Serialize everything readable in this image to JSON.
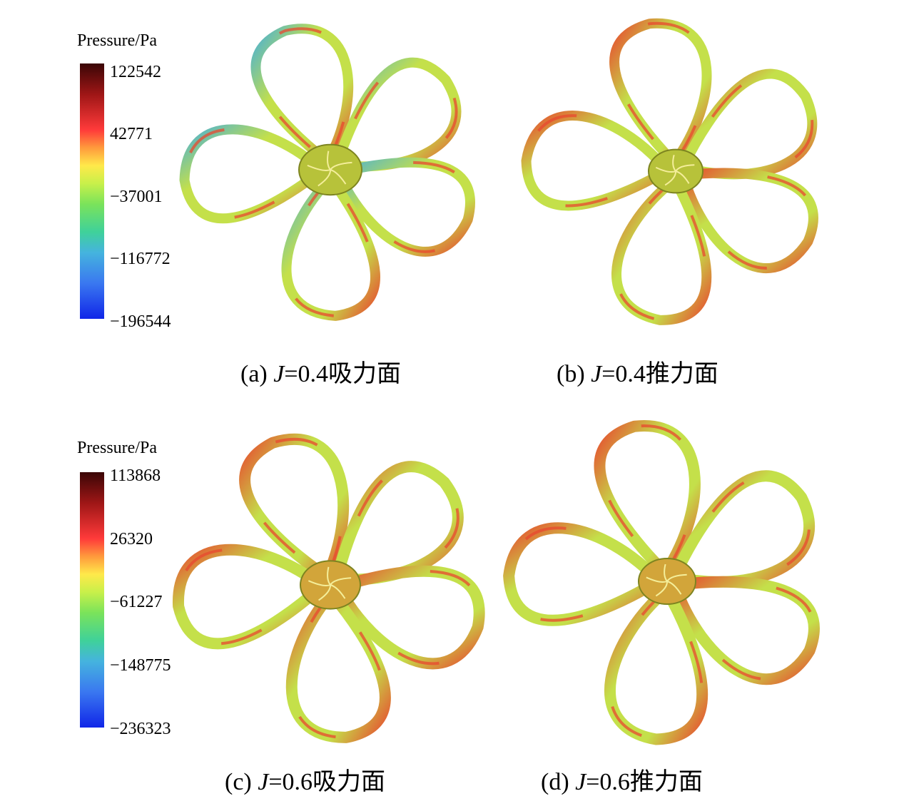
{
  "legend_top": {
    "title": "Pressure/Pa",
    "ticks": [
      "122542",
      "42771",
      "−37001",
      "−116772",
      "−196544"
    ]
  },
  "legend_bottom": {
    "title": "Pressure/Pa",
    "ticks": [
      "113868",
      "26320",
      "−61227",
      "−148775",
      "−236323"
    ]
  },
  "captions": {
    "a": {
      "prefix": "(a) ",
      "j": "J",
      "value": "=0.4吸力面"
    },
    "b": {
      "prefix": "(b) ",
      "j": "J",
      "value": "=0.4推力面"
    },
    "c": {
      "prefix": "(c) ",
      "j": "J",
      "value": "=0.6吸力面"
    },
    "d": {
      "prefix": "(d) ",
      "j": "J",
      "value": "=0.6推力面"
    }
  },
  "colors": {
    "blade_base": "#c4e04a",
    "blade_high": "#e8482f",
    "blade_low": "#48b0d8",
    "hub": "#b7c23a",
    "hub_warm": "#d2a53a"
  }
}
